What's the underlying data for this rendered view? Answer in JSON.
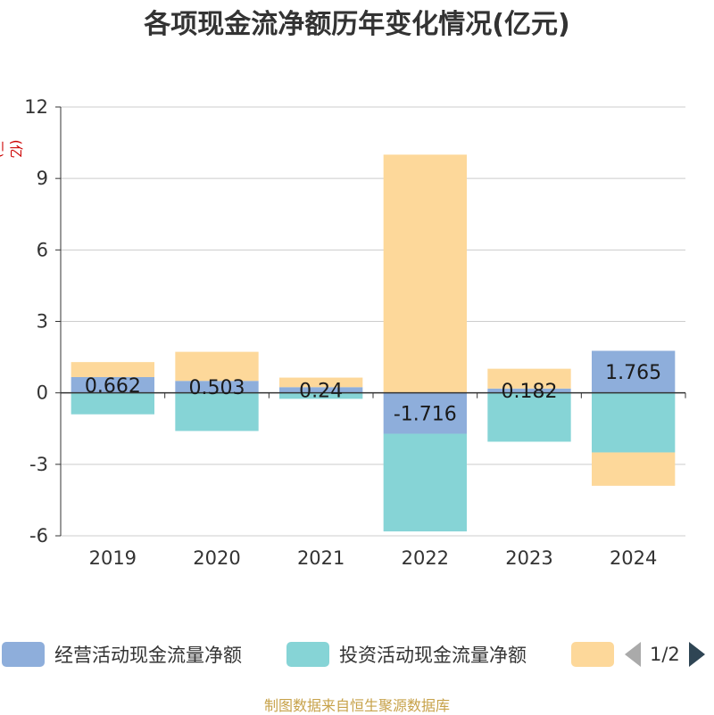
{
  "title": "各项现金流净额历年变化情况(亿元)",
  "y_unit": "(亿元)",
  "source": "制图数据来自恒生聚源数据库",
  "legend": {
    "items": [
      {
        "label": "经营活动现金流量净额",
        "color": "#8eaedb"
      },
      {
        "label": "投资活动现金流量净额",
        "color": "#86d4d6"
      },
      {
        "label": "",
        "color": "#fdd89a"
      }
    ],
    "page": "1/2"
  },
  "chart_data": {
    "type": "bar",
    "stacked": true,
    "categories": [
      "2019",
      "2020",
      "2021",
      "2022",
      "2023",
      "2024"
    ],
    "series": [
      {
        "name": "经营活动现金流量净额",
        "color": "#8eaedb",
        "values": [
          0.662,
          0.503,
          0.24,
          -1.716,
          0.182,
          1.765
        ],
        "labels": [
          "0.662",
          "0.503",
          "0.24",
          "-1.716",
          "0.182",
          "1.765"
        ]
      },
      {
        "name": "投资活动现金流量净额",
        "color": "#86d4d6",
        "values": [
          -0.9,
          -1.6,
          -0.25,
          -4.1,
          -2.05,
          -2.5
        ]
      },
      {
        "color": "#fdd89a",
        "values": [
          0.63,
          1.22,
          0.4,
          10.0,
          0.83,
          -1.4
        ]
      }
    ],
    "ylim": [
      -6,
      12
    ],
    "yticks": [
      -6,
      -3,
      0,
      3,
      6,
      9,
      12
    ],
    "ytick_labels": [
      "-6",
      "-3",
      "0",
      "3",
      "6",
      "9",
      "12"
    ],
    "grid": true,
    "legend_position": "bottom"
  }
}
